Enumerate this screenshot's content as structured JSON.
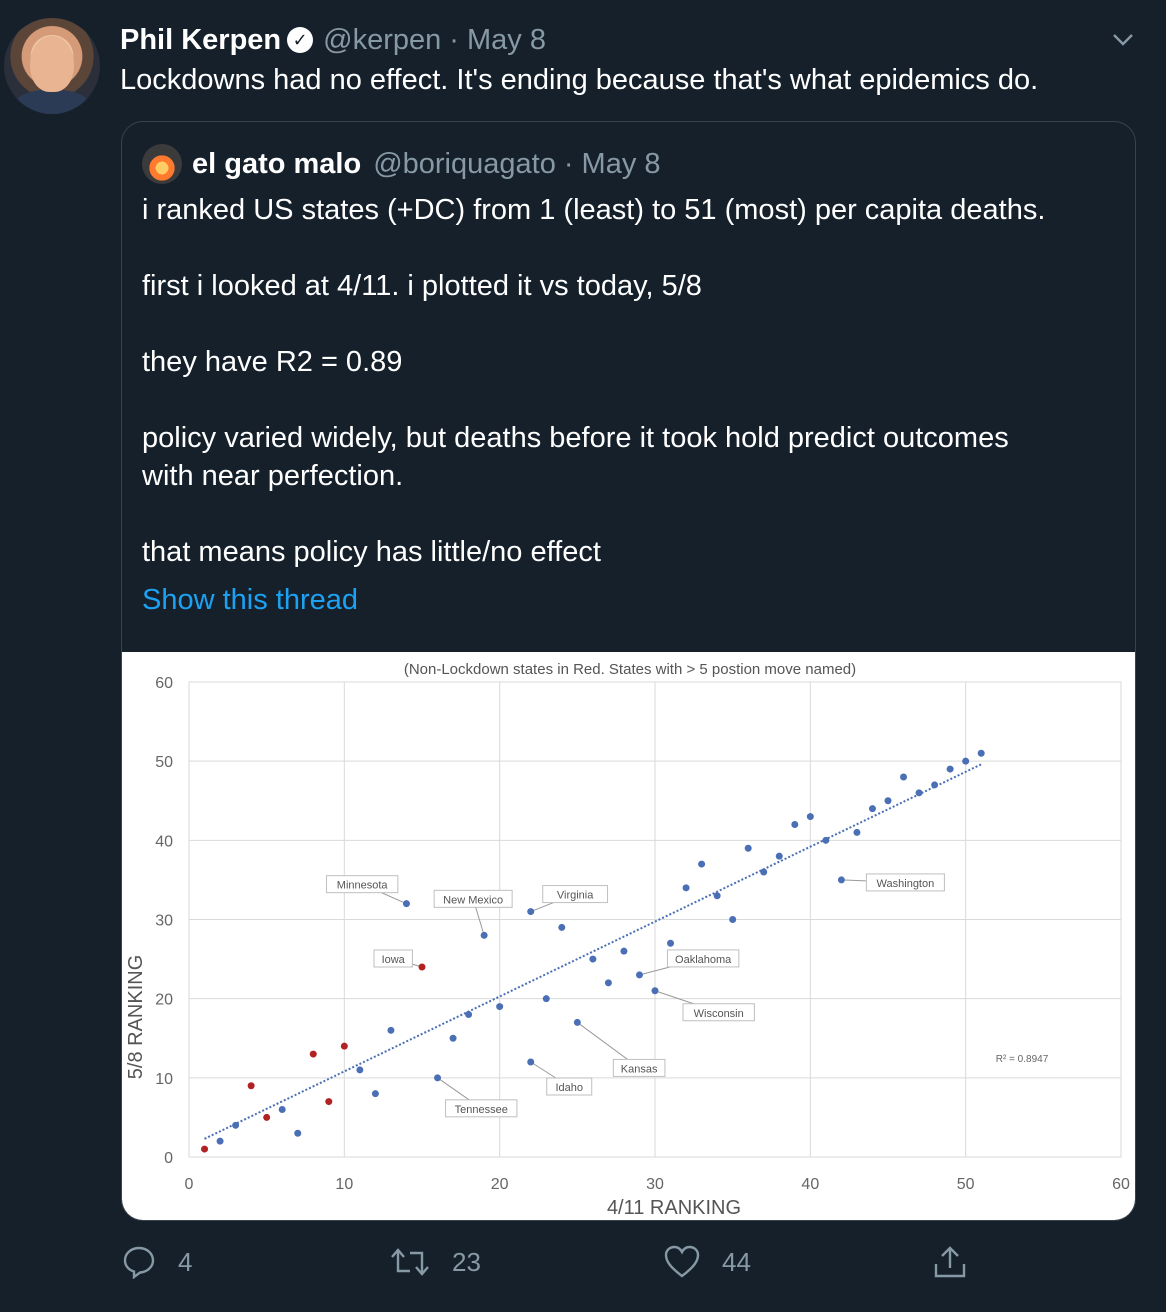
{
  "tweet": {
    "author_name": "Phil Kerpen",
    "handle": "@kerpen",
    "date": "· May 8",
    "text": "Lockdowns had no effect.  It's ending because that's what epidemics do."
  },
  "quote": {
    "author_name": "el gato malo",
    "handle": "@boriquagato",
    "date": "· May 8",
    "lines": [
      "i ranked US states (+DC) from 1 (least) to 51 (most) per capita deaths.",
      "first i looked at 4/11.  i plotted it vs today, 5/8",
      "they have R2 = 0.89",
      "policy varied widely, but deaths before it took hold predict outcomes",
      "with near perfection.",
      "that means policy has little/no effect"
    ],
    "show_thread": "Show this thread"
  },
  "chart_data": {
    "type": "scatter",
    "subtitle": "(Non-Lockdown states in Red.  States with > 5 postion move named)",
    "xlabel": "4/11 RANKING",
    "ylabel": "5/8 RANKING",
    "xlim": [
      0,
      60
    ],
    "ylim": [
      0,
      60
    ],
    "xticks": [
      "0",
      "10",
      "20",
      "30",
      "40",
      "50",
      "60"
    ],
    "yticks": [
      "0",
      "10",
      "20",
      "30",
      "40",
      "50",
      "60"
    ],
    "grid": true,
    "r2_label": "R² = 0.8947",
    "trendline": {
      "x0": 1,
      "y0": 2.3,
      "x1": 51,
      "y1": 49.6
    },
    "series": [
      {
        "color": "#4a6fb5",
        "points": [
          [
            2,
            2
          ],
          [
            3,
            4
          ],
          [
            6,
            6
          ],
          [
            7,
            3
          ],
          [
            11,
            11
          ],
          [
            12,
            8
          ],
          [
            13,
            16
          ],
          [
            14,
            32
          ],
          [
            16,
            10
          ],
          [
            17,
            15
          ],
          [
            18,
            18
          ],
          [
            19,
            28
          ],
          [
            20,
            19
          ],
          [
            22,
            12
          ],
          [
            22,
            31
          ],
          [
            23,
            20
          ],
          [
            24,
            29
          ],
          [
            25,
            17
          ],
          [
            26,
            25
          ],
          [
            27,
            22
          ],
          [
            28,
            26
          ],
          [
            29,
            23
          ],
          [
            30,
            21
          ],
          [
            31,
            27
          ],
          [
            32,
            34
          ],
          [
            33,
            37
          ],
          [
            34,
            33
          ],
          [
            35,
            30
          ],
          [
            36,
            39
          ],
          [
            37,
            36
          ],
          [
            38,
            38
          ],
          [
            39,
            42
          ],
          [
            40,
            43
          ],
          [
            41,
            40
          ],
          [
            42,
            35
          ],
          [
            43,
            41
          ],
          [
            44,
            44
          ],
          [
            45,
            45
          ],
          [
            46,
            48
          ],
          [
            47,
            46
          ],
          [
            48,
            47
          ],
          [
            49,
            49
          ],
          [
            50,
            50
          ],
          [
            51,
            51
          ]
        ]
      },
      {
        "color": "#b22222",
        "points": [
          [
            1,
            1
          ],
          [
            4,
            9
          ],
          [
            5,
            5
          ],
          [
            8,
            13
          ],
          [
            9,
            7
          ],
          [
            10,
            14
          ],
          [
            15,
            24
          ]
        ]
      }
    ],
    "annotations": [
      {
        "label": "Minnesota",
        "x": 14,
        "y": 32
      },
      {
        "label": "New Mexico",
        "x": 19,
        "y": 28
      },
      {
        "label": "Iowa",
        "x": 15,
        "y": 24
      },
      {
        "label": "Virginia",
        "x": 22,
        "y": 31
      },
      {
        "label": "Oaklahoma",
        "x": 29,
        "y": 23
      },
      {
        "label": "Wisconsin",
        "x": 30,
        "y": 21
      },
      {
        "label": "Kansas",
        "x": 25,
        "y": 17
      },
      {
        "label": "Idaho",
        "x": 22,
        "y": 12
      },
      {
        "label": "Tennessee",
        "x": 16,
        "y": 10
      },
      {
        "label": "Washington",
        "x": 42,
        "y": 35
      }
    ]
  },
  "actions": {
    "reply_count": "4",
    "retweet_count": "23",
    "like_count": "44"
  },
  "colors": {
    "background": "#15202b",
    "muted": "#8899a6",
    "link": "#1da1f2",
    "border": "#38444d"
  }
}
